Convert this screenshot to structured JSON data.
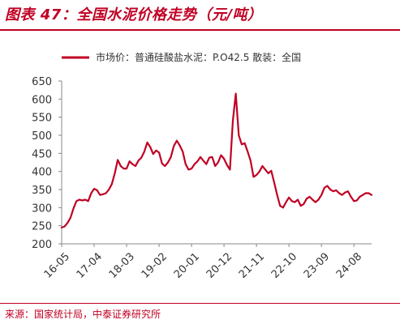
{
  "figure": {
    "title": "图表 47：全国水泥价格走势（元/吨）",
    "source": "来源：国家统计局，中泰证券研究所"
  },
  "colors": {
    "accent": "#c00024",
    "line": "#c00024",
    "axis": "#888888",
    "text": "#333333"
  },
  "chart_data": {
    "type": "line",
    "title": "",
    "xlabel": "",
    "ylabel": "",
    "ylim": [
      200,
      650
    ],
    "yticks": [
      200,
      250,
      300,
      350,
      400,
      450,
      500,
      550,
      600,
      650
    ],
    "xlim": [
      "2016-05",
      "2025-02"
    ],
    "xticks": [
      "16-05",
      "17-04",
      "18-03",
      "19-02",
      "20-01",
      "20-12",
      "21-11",
      "22-10",
      "23-09",
      "24-08"
    ],
    "grid": false,
    "legend_position": "top",
    "series": [
      {
        "name": "市场价：普通硅酸盐水泥：P.O42.5 散装：全国",
        "x": [
          "2016-05",
          "2016-06",
          "2016-07",
          "2016-08",
          "2016-09",
          "2016-10",
          "2016-11",
          "2016-12",
          "2017-01",
          "2017-02",
          "2017-03",
          "2017-04",
          "2017-05",
          "2017-06",
          "2017-07",
          "2017-08",
          "2017-09",
          "2017-10",
          "2017-11",
          "2017-12",
          "2018-01",
          "2018-02",
          "2018-03",
          "2018-04",
          "2018-05",
          "2018-06",
          "2018-07",
          "2018-08",
          "2018-09",
          "2018-10",
          "2018-11",
          "2018-12",
          "2019-01",
          "2019-02",
          "2019-03",
          "2019-04",
          "2019-05",
          "2019-06",
          "2019-07",
          "2019-08",
          "2019-09",
          "2019-10",
          "2019-11",
          "2019-12",
          "2020-01",
          "2020-02",
          "2020-03",
          "2020-04",
          "2020-05",
          "2020-06",
          "2020-07",
          "2020-08",
          "2020-09",
          "2020-10",
          "2020-11",
          "2020-12",
          "2021-01",
          "2021-02",
          "2021-03",
          "2021-04",
          "2021-05",
          "2021-06",
          "2021-07",
          "2021-08",
          "2021-09",
          "2021-10",
          "2021-11",
          "2021-12",
          "2022-01",
          "2022-02",
          "2022-03",
          "2022-04",
          "2022-05",
          "2022-06",
          "2022-07",
          "2022-08",
          "2022-09",
          "2022-10",
          "2022-11",
          "2022-12",
          "2023-01",
          "2023-02",
          "2023-03",
          "2023-04",
          "2023-05",
          "2023-06",
          "2023-07",
          "2023-08",
          "2023-09",
          "2023-10",
          "2023-11",
          "2023-12",
          "2024-01",
          "2024-02",
          "2024-03",
          "2024-04",
          "2024-05",
          "2024-06",
          "2024-07",
          "2024-08",
          "2024-09",
          "2024-10",
          "2024-11",
          "2024-12",
          "2025-01",
          "2025-02"
        ],
        "values": [
          245,
          248,
          258,
          272,
          298,
          318,
          322,
          320,
          322,
          318,
          340,
          352,
          348,
          335,
          337,
          340,
          350,
          365,
          395,
          432,
          415,
          408,
          408,
          428,
          420,
          415,
          430,
          438,
          455,
          480,
          468,
          448,
          458,
          452,
          422,
          415,
          425,
          440,
          470,
          485,
          472,
          455,
          420,
          405,
          408,
          420,
          428,
          440,
          430,
          420,
          438,
          440,
          415,
          425,
          445,
          435,
          418,
          405,
          540,
          615,
          500,
          475,
          478,
          455,
          430,
          385,
          390,
          400,
          415,
          405,
          395,
          402,
          370,
          335,
          305,
          300,
          315,
          328,
          318,
          315,
          322,
          305,
          310,
          325,
          330,
          322,
          315,
          322,
          335,
          355,
          360,
          350,
          345,
          348,
          340,
          335,
          342,
          345,
          330,
          318,
          320,
          330,
          335,
          340,
          340,
          335
        ]
      }
    ]
  }
}
